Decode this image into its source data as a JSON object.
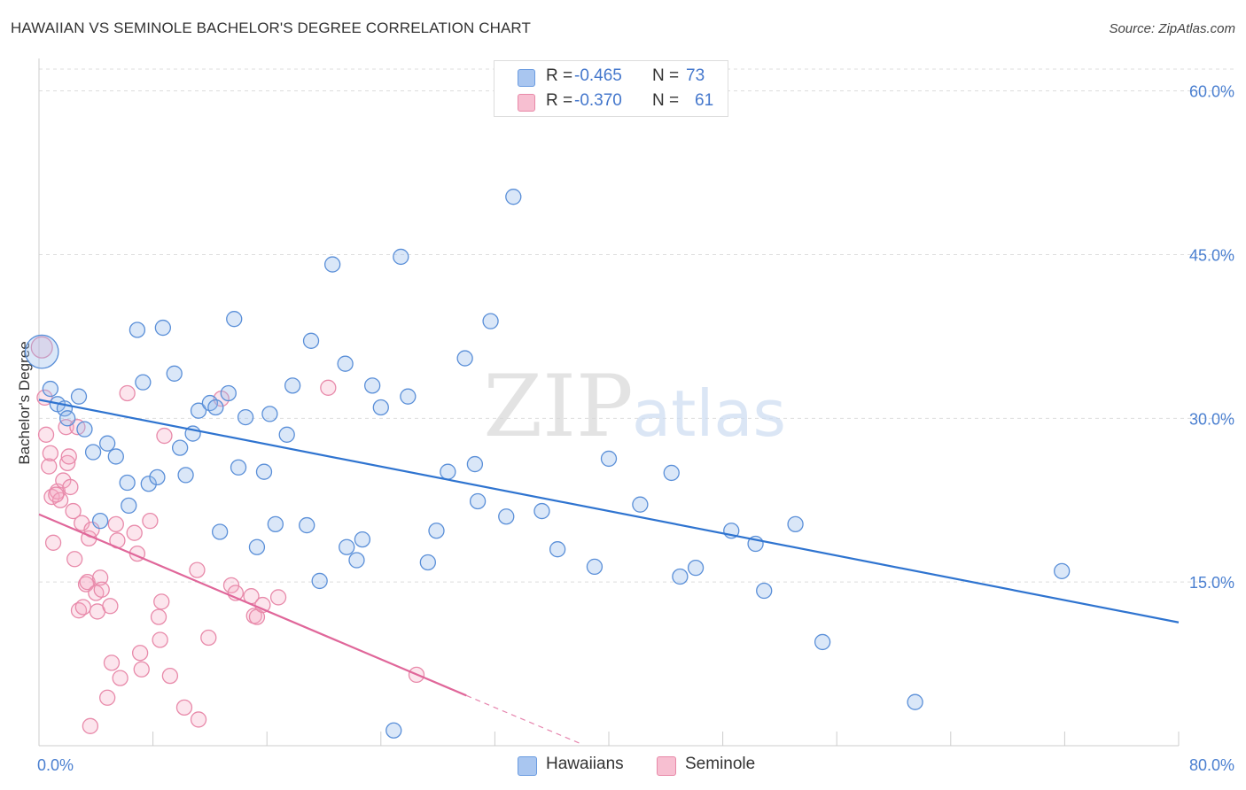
{
  "header": {
    "title": "HAWAIIAN VS SEMINOLE BACHELOR'S DEGREE CORRELATION CHART",
    "source": "Source: ZipAtlas.com"
  },
  "watermark": {
    "zip": "ZIP",
    "atlas": "atlas"
  },
  "legend_top": [
    {
      "r_label": "R =",
      "r_value": "-0.465",
      "n_label": "N =",
      "n_value": "73",
      "color": "#a9c6f0",
      "stroke": "#6a9be0"
    },
    {
      "r_label": "R =",
      "r_value": "-0.370",
      "n_label": "N =",
      "n_value": "61",
      "color": "#f7bfd1",
      "stroke": "#e889a8"
    }
  ],
  "legend_bottom": [
    {
      "label": "Hawaiians",
      "color": "#a9c6f0",
      "stroke": "#6a9be0"
    },
    {
      "label": "Seminole",
      "color": "#f7bfd1",
      "stroke": "#e889a8"
    }
  ],
  "colors": {
    "blue_fill": "rgba(150,185,235,0.35)",
    "blue_stroke": "#5a8fd8",
    "blue_line": "#2f74d0",
    "pink_fill": "rgba(245,170,195,0.30)",
    "pink_stroke": "#e88aaa",
    "pink_line": "#e0679a",
    "axis_label": "#4a7fd0",
    "grid": "#dddddd"
  },
  "chart_data": {
    "type": "scatter",
    "title": "HAWAIIAN VS SEMINOLE BACHELOR'S DEGREE CORRELATION CHART",
    "xlabel": "",
    "ylabel": "Bachelor's Degree",
    "xlim": [
      0,
      80
    ],
    "ylim": [
      0,
      62
    ],
    "x_tick_labels": [
      {
        "value": 0,
        "label": "0.0%"
      },
      {
        "value": 80,
        "label": "80.0%"
      }
    ],
    "y_tick_labels": [
      {
        "value": 15,
        "label": "15.0%"
      },
      {
        "value": 30,
        "label": "30.0%"
      },
      {
        "value": 45,
        "label": "45.0%"
      },
      {
        "value": 60,
        "label": "60.0%"
      }
    ],
    "series": [
      {
        "name": "Hawaiians",
        "r": -0.465,
        "n": 73,
        "trend": {
          "x0": 0,
          "y0": 31.7,
          "x1": 80,
          "y1": 11.3
        },
        "points": [
          [
            0.2,
            36.1,
            2.2
          ],
          [
            0.8,
            32.7,
            1
          ],
          [
            1.3,
            31.3,
            1
          ],
          [
            1.8,
            30.9,
            1
          ],
          [
            2.8,
            32.0,
            1
          ],
          [
            2.0,
            30.0,
            1
          ],
          [
            3.2,
            29.0,
            1
          ],
          [
            3.8,
            26.9,
            1
          ],
          [
            4.8,
            27.7,
            1
          ],
          [
            5.4,
            26.5,
            1
          ],
          [
            6.2,
            24.1,
            1
          ],
          [
            6.3,
            22.0,
            1
          ],
          [
            4.3,
            20.6,
            1
          ],
          [
            6.9,
            38.1,
            1
          ],
          [
            7.3,
            33.3,
            1
          ],
          [
            7.7,
            24.0,
            1
          ],
          [
            8.3,
            24.6,
            1
          ],
          [
            8.7,
            38.3,
            1
          ],
          [
            9.5,
            34.1,
            1
          ],
          [
            9.9,
            27.3,
            1
          ],
          [
            10.3,
            24.8,
            1
          ],
          [
            10.8,
            28.6,
            1
          ],
          [
            11.2,
            30.7,
            1
          ],
          [
            12.0,
            31.4,
            1
          ],
          [
            12.4,
            31.0,
            1
          ],
          [
            12.7,
            19.6,
            1
          ],
          [
            13.3,
            32.3,
            1
          ],
          [
            13.7,
            39.1,
            1
          ],
          [
            14.0,
            25.5,
            1
          ],
          [
            14.5,
            30.1,
            1
          ],
          [
            15.3,
            18.2,
            1
          ],
          [
            15.8,
            25.1,
            1
          ],
          [
            16.2,
            30.4,
            1
          ],
          [
            16.6,
            20.3,
            1
          ],
          [
            17.4,
            28.5,
            1
          ],
          [
            17.8,
            33.0,
            1
          ],
          [
            18.8,
            20.2,
            1
          ],
          [
            19.1,
            37.1,
            1
          ],
          [
            19.7,
            15.1,
            1
          ],
          [
            20.6,
            44.1,
            1
          ],
          [
            21.5,
            35.0,
            1
          ],
          [
            21.6,
            18.2,
            1
          ],
          [
            22.3,
            17.0,
            1
          ],
          [
            22.7,
            18.9,
            1
          ],
          [
            23.4,
            33.0,
            1
          ],
          [
            24.0,
            31.0,
            1
          ],
          [
            24.9,
            1.4,
            1
          ],
          [
            25.4,
            44.8,
            1
          ],
          [
            25.9,
            32.0,
            1
          ],
          [
            27.3,
            16.8,
            1
          ],
          [
            27.9,
            19.7,
            1
          ],
          [
            28.7,
            25.1,
            1
          ],
          [
            29.9,
            35.5,
            1
          ],
          [
            30.6,
            25.8,
            1
          ],
          [
            30.8,
            22.4,
            1
          ],
          [
            31.7,
            38.9,
            1
          ],
          [
            32.8,
            21.0,
            1
          ],
          [
            33.3,
            50.3,
            1
          ],
          [
            35.3,
            21.5,
            1
          ],
          [
            36.4,
            18.0,
            1
          ],
          [
            39.0,
            16.4,
            1
          ],
          [
            40.0,
            26.3,
            1
          ],
          [
            42.2,
            22.1,
            1
          ],
          [
            44.4,
            25.0,
            1
          ],
          [
            45.0,
            15.5,
            1
          ],
          [
            46.1,
            16.3,
            1
          ],
          [
            48.6,
            19.7,
            1
          ],
          [
            50.3,
            18.5,
            1
          ],
          [
            50.9,
            14.2,
            1
          ],
          [
            53.1,
            20.3,
            1
          ],
          [
            55.0,
            9.5,
            1
          ],
          [
            61.5,
            4.0,
            1
          ],
          [
            71.8,
            16.0,
            1
          ]
        ]
      },
      {
        "name": "Seminole",
        "r": -0.37,
        "n": 61,
        "trend": {
          "x0": 0,
          "y0": 21.2,
          "x1": 30,
          "y1": 4.6
        },
        "trend_dashed": {
          "x0": 30,
          "y0": 4.6,
          "x1": 38,
          "y1": 0.2
        },
        "points": [
          [
            0.2,
            36.5,
            1.4
          ],
          [
            0.4,
            31.9,
            1
          ],
          [
            0.5,
            28.5,
            1
          ],
          [
            0.7,
            25.6,
            1
          ],
          [
            0.8,
            26.8,
            1
          ],
          [
            0.9,
            22.8,
            1
          ],
          [
            1.0,
            18.6,
            1
          ],
          [
            1.3,
            23.3,
            1
          ],
          [
            1.5,
            22.5,
            1
          ],
          [
            1.7,
            24.3,
            1
          ],
          [
            1.9,
            29.2,
            1
          ],
          [
            2.0,
            25.9,
            1
          ],
          [
            2.1,
            26.5,
            1
          ],
          [
            2.2,
            23.7,
            1
          ],
          [
            2.4,
            21.5,
            1
          ],
          [
            2.5,
            17.1,
            1
          ],
          [
            2.7,
            29.2,
            1
          ],
          [
            2.8,
            12.4,
            1
          ],
          [
            3.0,
            20.4,
            1
          ],
          [
            3.1,
            12.7,
            1
          ],
          [
            3.3,
            14.8,
            1
          ],
          [
            3.4,
            15.0,
            1
          ],
          [
            3.5,
            19.0,
            1
          ],
          [
            3.6,
            1.8,
            1
          ],
          [
            3.7,
            19.8,
            1
          ],
          [
            4.0,
            14.0,
            1
          ],
          [
            4.1,
            12.3,
            1
          ],
          [
            4.3,
            15.4,
            1
          ],
          [
            4.4,
            14.3,
            1
          ],
          [
            4.8,
            4.4,
            1
          ],
          [
            5.0,
            12.8,
            1
          ],
          [
            5.1,
            7.6,
            1
          ],
          [
            5.4,
            20.3,
            1
          ],
          [
            5.5,
            18.8,
            1
          ],
          [
            5.7,
            6.2,
            1
          ],
          [
            6.2,
            32.3,
            1
          ],
          [
            6.7,
            19.5,
            1
          ],
          [
            6.9,
            17.6,
            1
          ],
          [
            7.1,
            8.5,
            1
          ],
          [
            7.2,
            7.0,
            1
          ],
          [
            7.8,
            20.6,
            1
          ],
          [
            8.4,
            11.8,
            1
          ],
          [
            8.5,
            9.7,
            1
          ],
          [
            8.6,
            13.2,
            1
          ],
          [
            8.8,
            28.4,
            1
          ],
          [
            9.2,
            6.4,
            1
          ],
          [
            10.2,
            3.5,
            1
          ],
          [
            11.1,
            16.1,
            1
          ],
          [
            11.2,
            2.4,
            1
          ],
          [
            11.9,
            9.9,
            1
          ],
          [
            12.8,
            31.8,
            1
          ],
          [
            13.5,
            14.7,
            1
          ],
          [
            13.8,
            14.0,
            1
          ],
          [
            14.9,
            13.7,
            1
          ],
          [
            15.1,
            11.9,
            1
          ],
          [
            15.3,
            11.8,
            1
          ],
          [
            15.7,
            12.9,
            1
          ],
          [
            16.8,
            13.6,
            1
          ],
          [
            20.3,
            32.8,
            1
          ],
          [
            26.5,
            6.5,
            1
          ],
          [
            1.2,
            23.0,
            1
          ]
        ]
      }
    ]
  }
}
